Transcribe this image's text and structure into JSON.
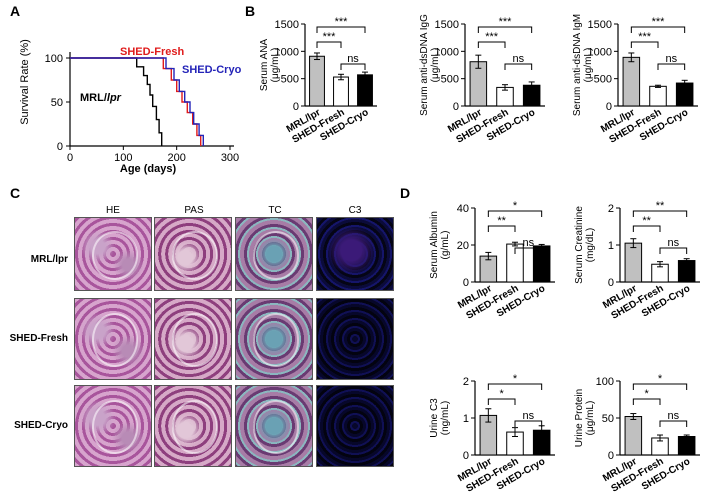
{
  "panel_letters": [
    "A",
    "B",
    "C",
    "D"
  ],
  "panelA": {
    "ylabel": "Survival Rate (%)",
    "xlabel": "Age (days)",
    "xticks": [
      "0",
      "100",
      "200",
      "300"
    ],
    "yticks": [
      "0",
      "50",
      "100"
    ],
    "labels": {
      "fresh": "SHED-Fresh",
      "cryo": "SHED-Cryo",
      "mrl": "MRL/",
      "mrl_italic": "lpr"
    }
  },
  "panelC": {
    "col_headers": [
      "HE",
      "PAS",
      "TC",
      "C3"
    ],
    "row_labels": [
      "MRL/lpr",
      "SHED-Fresh",
      "SHED-Cryo"
    ]
  },
  "colors": {
    "fresh": "#e01b1b",
    "cryo": "#2424b8",
    "mrl": "#000000",
    "bar_mrl": "#c0c0c0",
    "bar_fresh": "#ffffff",
    "bar_cryo": "#000000"
  },
  "chart_data": [
    {
      "id": "A",
      "type": "line",
      "xlabel": "Age (days)",
      "ylabel": "Survival Rate (%)",
      "xlim": [
        0,
        300
      ],
      "ylim": [
        0,
        100
      ],
      "series": [
        {
          "name": "MRL/lpr",
          "color": "#000000",
          "points": [
            [
              0,
              100
            ],
            [
              125,
              100
            ],
            [
              125,
              90
            ],
            [
              138,
              90
            ],
            [
              138,
              80
            ],
            [
              145,
              80
            ],
            [
              145,
              70
            ],
            [
              150,
              70
            ],
            [
              150,
              58
            ],
            [
              155,
              58
            ],
            [
              155,
              45
            ],
            [
              162,
              45
            ],
            [
              162,
              30
            ],
            [
              167,
              30
            ],
            [
              167,
              15
            ],
            [
              172,
              15
            ],
            [
              172,
              0
            ]
          ]
        },
        {
          "name": "SHED-Fresh",
          "color": "#e01b1b",
          "points": [
            [
              0,
              100
            ],
            [
              175,
              100
            ],
            [
              175,
              88
            ],
            [
              190,
              88
            ],
            [
              190,
              75
            ],
            [
              200,
              75
            ],
            [
              200,
              62
            ],
            [
              210,
              62
            ],
            [
              210,
              50
            ],
            [
              220,
              50
            ],
            [
              220,
              38
            ],
            [
              230,
              38
            ],
            [
              230,
              25
            ],
            [
              238,
              25
            ],
            [
              238,
              12
            ],
            [
              245,
              12
            ],
            [
              245,
              0
            ]
          ]
        },
        {
          "name": "SHED-Cryo",
          "color": "#2424b8",
          "points": [
            [
              0,
              100
            ],
            [
              180,
              100
            ],
            [
              180,
              88
            ],
            [
              195,
              88
            ],
            [
              195,
              75
            ],
            [
              205,
              75
            ],
            [
              205,
              62
            ],
            [
              215,
              62
            ],
            [
              215,
              50
            ],
            [
              225,
              50
            ],
            [
              225,
              38
            ],
            [
              232,
              38
            ],
            [
              232,
              25
            ],
            [
              242,
              25
            ],
            [
              242,
              12
            ],
            [
              250,
              12
            ],
            [
              250,
              0
            ]
          ]
        }
      ]
    },
    {
      "id": "B1",
      "type": "bar",
      "ylabel": "Serum ANA",
      "yunit": "(μg/mL)",
      "categories": [
        "MRL/lpr",
        "SHED-Fresh",
        "SHED-Cryo"
      ],
      "values": [
        910,
        530,
        570
      ],
      "errors": [
        60,
        50,
        50
      ],
      "ylim": [
        0,
        1500
      ],
      "yticks": [
        "0",
        "500",
        "1000",
        "1500"
      ],
      "sig": [
        {
          "from": 0,
          "to": 2,
          "label": "***"
        },
        {
          "from": 0,
          "to": 1,
          "label": "***"
        },
        {
          "from": 1,
          "to": 2,
          "label": "ns"
        }
      ]
    },
    {
      "id": "B2",
      "type": "bar",
      "ylabel": "Serum anti-dsDNA IgG",
      "yunit": "(μg/mL)",
      "categories": [
        "MRL/lpr",
        "SHED-Fresh",
        "SHED-Cryo"
      ],
      "values": [
        810,
        340,
        380
      ],
      "errors": [
        120,
        50,
        60
      ],
      "ylim": [
        0,
        1500
      ],
      "yticks": [
        "0",
        "500",
        "1000",
        "1500"
      ],
      "sig": [
        {
          "from": 0,
          "to": 2,
          "label": "***"
        },
        {
          "from": 0,
          "to": 1,
          "label": "***"
        },
        {
          "from": 1,
          "to": 2,
          "label": "ns"
        }
      ]
    },
    {
      "id": "B3",
      "type": "bar",
      "ylabel": "Serum anti-dsDNA IgM",
      "yunit": "(μg/mL)",
      "categories": [
        "MRL/lpr",
        "SHED-Fresh",
        "SHED-Cryo"
      ],
      "values": [
        890,
        360,
        420
      ],
      "errors": [
        80,
        20,
        50
      ],
      "ylim": [
        0,
        1500
      ],
      "yticks": [
        "0",
        "500",
        "1000",
        "1500"
      ],
      "sig": [
        {
          "from": 0,
          "to": 2,
          "label": "***"
        },
        {
          "from": 0,
          "to": 1,
          "label": "***"
        },
        {
          "from": 1,
          "to": 2,
          "label": "ns"
        }
      ]
    },
    {
      "id": "D1",
      "type": "bar",
      "ylabel": "Serum Albumin",
      "yunit": "(g/mL)",
      "categories": [
        "MRL/lpr",
        "SHED-Fresh",
        "SHED-Cryo"
      ],
      "values": [
        14,
        20.5,
        19.5
      ],
      "errors": [
        2,
        1,
        0.8
      ],
      "ylim": [
        0,
        40
      ],
      "yticks": [
        "0",
        "20",
        "40"
      ],
      "sig": [
        {
          "from": 0,
          "to": 2,
          "label": "*"
        },
        {
          "from": 0,
          "to": 1,
          "label": "**"
        },
        {
          "from": 1,
          "to": 2,
          "label": "ns"
        }
      ]
    },
    {
      "id": "D2",
      "type": "bar",
      "ylabel": "Serum Creatinine",
      "yunit": "(mg/dL)",
      "categories": [
        "MRL/lpr",
        "SHED-Fresh",
        "SHED-Cryo"
      ],
      "values": [
        1.05,
        0.48,
        0.58
      ],
      "errors": [
        0.12,
        0.07,
        0.05
      ],
      "ylim": [
        0,
        2
      ],
      "yticks": [
        "0",
        "1",
        "2"
      ],
      "sig": [
        {
          "from": 0,
          "to": 2,
          "label": "**"
        },
        {
          "from": 0,
          "to": 1,
          "label": "**"
        },
        {
          "from": 1,
          "to": 2,
          "label": "ns"
        }
      ]
    },
    {
      "id": "D3",
      "type": "bar",
      "ylabel": "Urine C3",
      "yunit": "(ng/mL)",
      "categories": [
        "MRL/lpr",
        "SHED-Fresh",
        "SHED-Cryo"
      ],
      "values": [
        1.07,
        0.62,
        0.67
      ],
      "errors": [
        0.18,
        0.12,
        0.12
      ],
      "ylim": [
        0,
        2
      ],
      "yticks": [
        "0",
        "1",
        "2"
      ],
      "sig": [
        {
          "from": 0,
          "to": 2,
          "label": "*"
        },
        {
          "from": 0,
          "to": 1,
          "label": "*"
        },
        {
          "from": 1,
          "to": 2,
          "label": "ns"
        }
      ]
    },
    {
      "id": "D4",
      "type": "bar",
      "ylabel": "Urine Protein",
      "yunit": "(μg/mL)",
      "categories": [
        "MRL/lpr",
        "SHED-Fresh",
        "SHED-Cryo"
      ],
      "values": [
        52,
        23,
        25
      ],
      "errors": [
        4,
        4,
        2
      ],
      "ylim": [
        0,
        100
      ],
      "yticks": [
        "0",
        "50",
        "100"
      ],
      "sig": [
        {
          "from": 0,
          "to": 2,
          "label": "*"
        },
        {
          "from": 0,
          "to": 1,
          "label": "*"
        },
        {
          "from": 1,
          "to": 2,
          "label": "ns"
        }
      ]
    }
  ]
}
